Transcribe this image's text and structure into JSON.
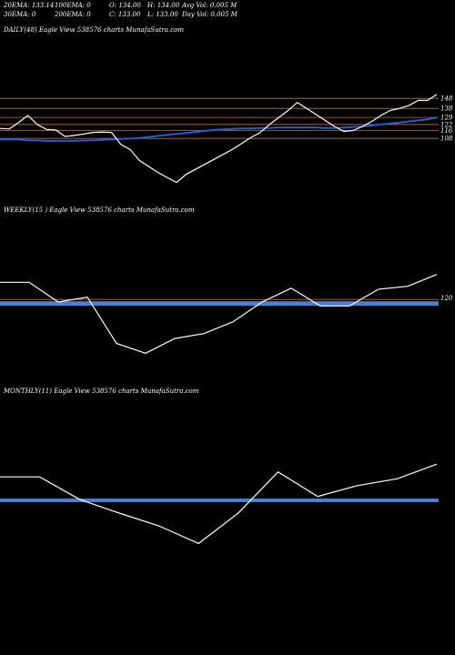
{
  "header": {
    "ema20": "20EMA: 133.14",
    "ema100": "100EMA: 0",
    "open": "O: 134.00",
    "high": "H: 134.00",
    "avg_vol": "Avg Vol: 0.005 M",
    "ema30": "30EMA: 0",
    "ema200": "200EMA: 0",
    "close": "C: 133.00",
    "low": "L: 133.00",
    "day_vol": "Day Vol: 0.005 M"
  },
  "colors": {
    "background": "#000000",
    "price_line": "#ffffff",
    "ema_line": "#1e5fd8",
    "level_line": "#c8703a",
    "weekly_band": "#4a7fd4"
  },
  "chart_data": [
    {
      "type": "line",
      "title": "DAILY(48) Eagle  View  538576  charts MunafaSutra.com",
      "levels": [
        148,
        138,
        129,
        122,
        116,
        108
      ],
      "level_labels": [
        "148",
        "138",
        "129",
        "122",
        "116",
        "108"
      ],
      "series": [
        {
          "values": [
            118,
            117.5,
            124,
            131,
            122,
            117,
            116.5,
            110,
            111,
            112.5,
            114,
            114.5,
            114,
            102,
            97,
            86,
            80,
            74,
            69,
            64,
            72,
            77,
            82,
            87,
            92,
            97,
            103,
            109,
            114,
            122,
            129,
            136,
            144,
            138,
            132,
            126,
            120,
            115,
            116,
            120,
            125,
            131,
            136,
            138,
            141,
            146,
            146,
            152
          ]
        },
        {
          "values": [
            107,
            107,
            107,
            106,
            106,
            105.5,
            105.5,
            105.5,
            105.5,
            106,
            106,
            106.5,
            107,
            107.5,
            108,
            108.5,
            109.5,
            110.5,
            111.5,
            112.5,
            113.5,
            114.5,
            115.5,
            116.5,
            117,
            117.5,
            118,
            118,
            118.5,
            118.5,
            119,
            119,
            119,
            119,
            119,
            118.5,
            118.5,
            119,
            119.5,
            120,
            121,
            122,
            123,
            124,
            125,
            126,
            127,
            129
          ]
        }
      ]
    },
    {
      "type": "line",
      "title": "WEEKLY(15                ) Eagle  View  538576  charts MunafaSutra.com",
      "levels": [
        120
      ],
      "level_labels": [
        "120"
      ],
      "series": [
        {
          "values": [
            142,
            142,
            122,
            127,
            80,
            70,
            85,
            90,
            102,
            122,
            136,
            118,
            118,
            135,
            138,
            150
          ]
        }
      ]
    },
    {
      "type": "line",
      "title": "MONTHLY(11) Eagle  View  538576  charts MunafaSutra.com",
      "series": [
        {
          "values": [
            129,
            129,
            106,
            92,
            79,
            61,
            92,
            134,
            109,
            120,
            127,
            142
          ]
        }
      ]
    }
  ]
}
